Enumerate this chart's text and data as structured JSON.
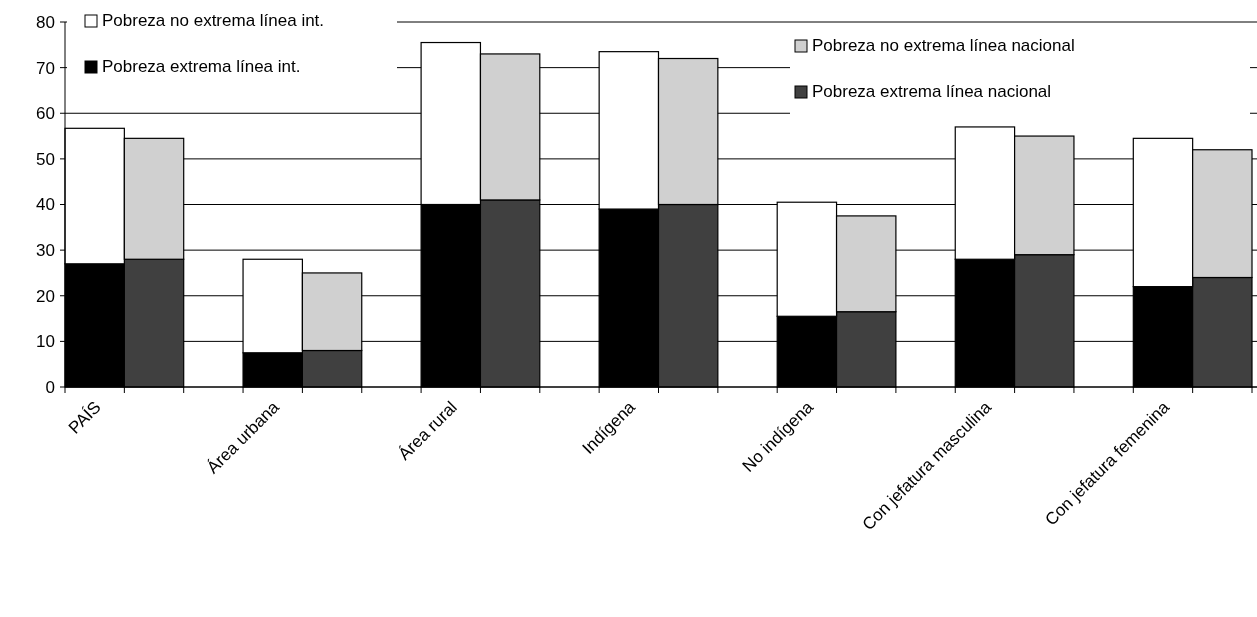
{
  "chart_data": {
    "type": "bar",
    "stacked": true,
    "categories": [
      "PAÍS",
      null,
      "Área urbana",
      null,
      "Área rural",
      null,
      "Indígena",
      null,
      "No indígena",
      null,
      "Con jefatura masculina",
      null,
      "Con jefatura femenina",
      null
    ],
    "series": [
      {
        "name": "Pobreza extrema línea int.",
        "color": "#000000",
        "values": [
          27,
          null,
          7.5,
          null,
          40,
          null,
          39,
          null,
          15.5,
          null,
          28,
          null,
          22,
          null
        ]
      },
      {
        "name": "Pobreza extrema línea nacional",
        "color": "#404040",
        "values": [
          null,
          28,
          null,
          8,
          null,
          41,
          null,
          40,
          null,
          16.5,
          null,
          29,
          null,
          24
        ]
      },
      {
        "name": "Pobreza no extrema línea int.",
        "color": "#ffffff",
        "values": [
          29.7,
          null,
          20.5,
          null,
          35.5,
          null,
          34.5,
          null,
          25,
          null,
          29,
          null,
          32.5,
          null
        ]
      },
      {
        "name": "Pobreza no extrema línea nacional",
        "color": "#d0d0d0",
        "values": [
          null,
          26.5,
          null,
          17,
          null,
          32,
          null,
          32,
          null,
          21,
          null,
          26,
          null,
          28
        ]
      }
    ],
    "ylim": [
      0,
      80
    ],
    "yticks": [
      0,
      10,
      20,
      30,
      40,
      50,
      60,
      70,
      80
    ],
    "grid": "y",
    "legend": "top"
  }
}
